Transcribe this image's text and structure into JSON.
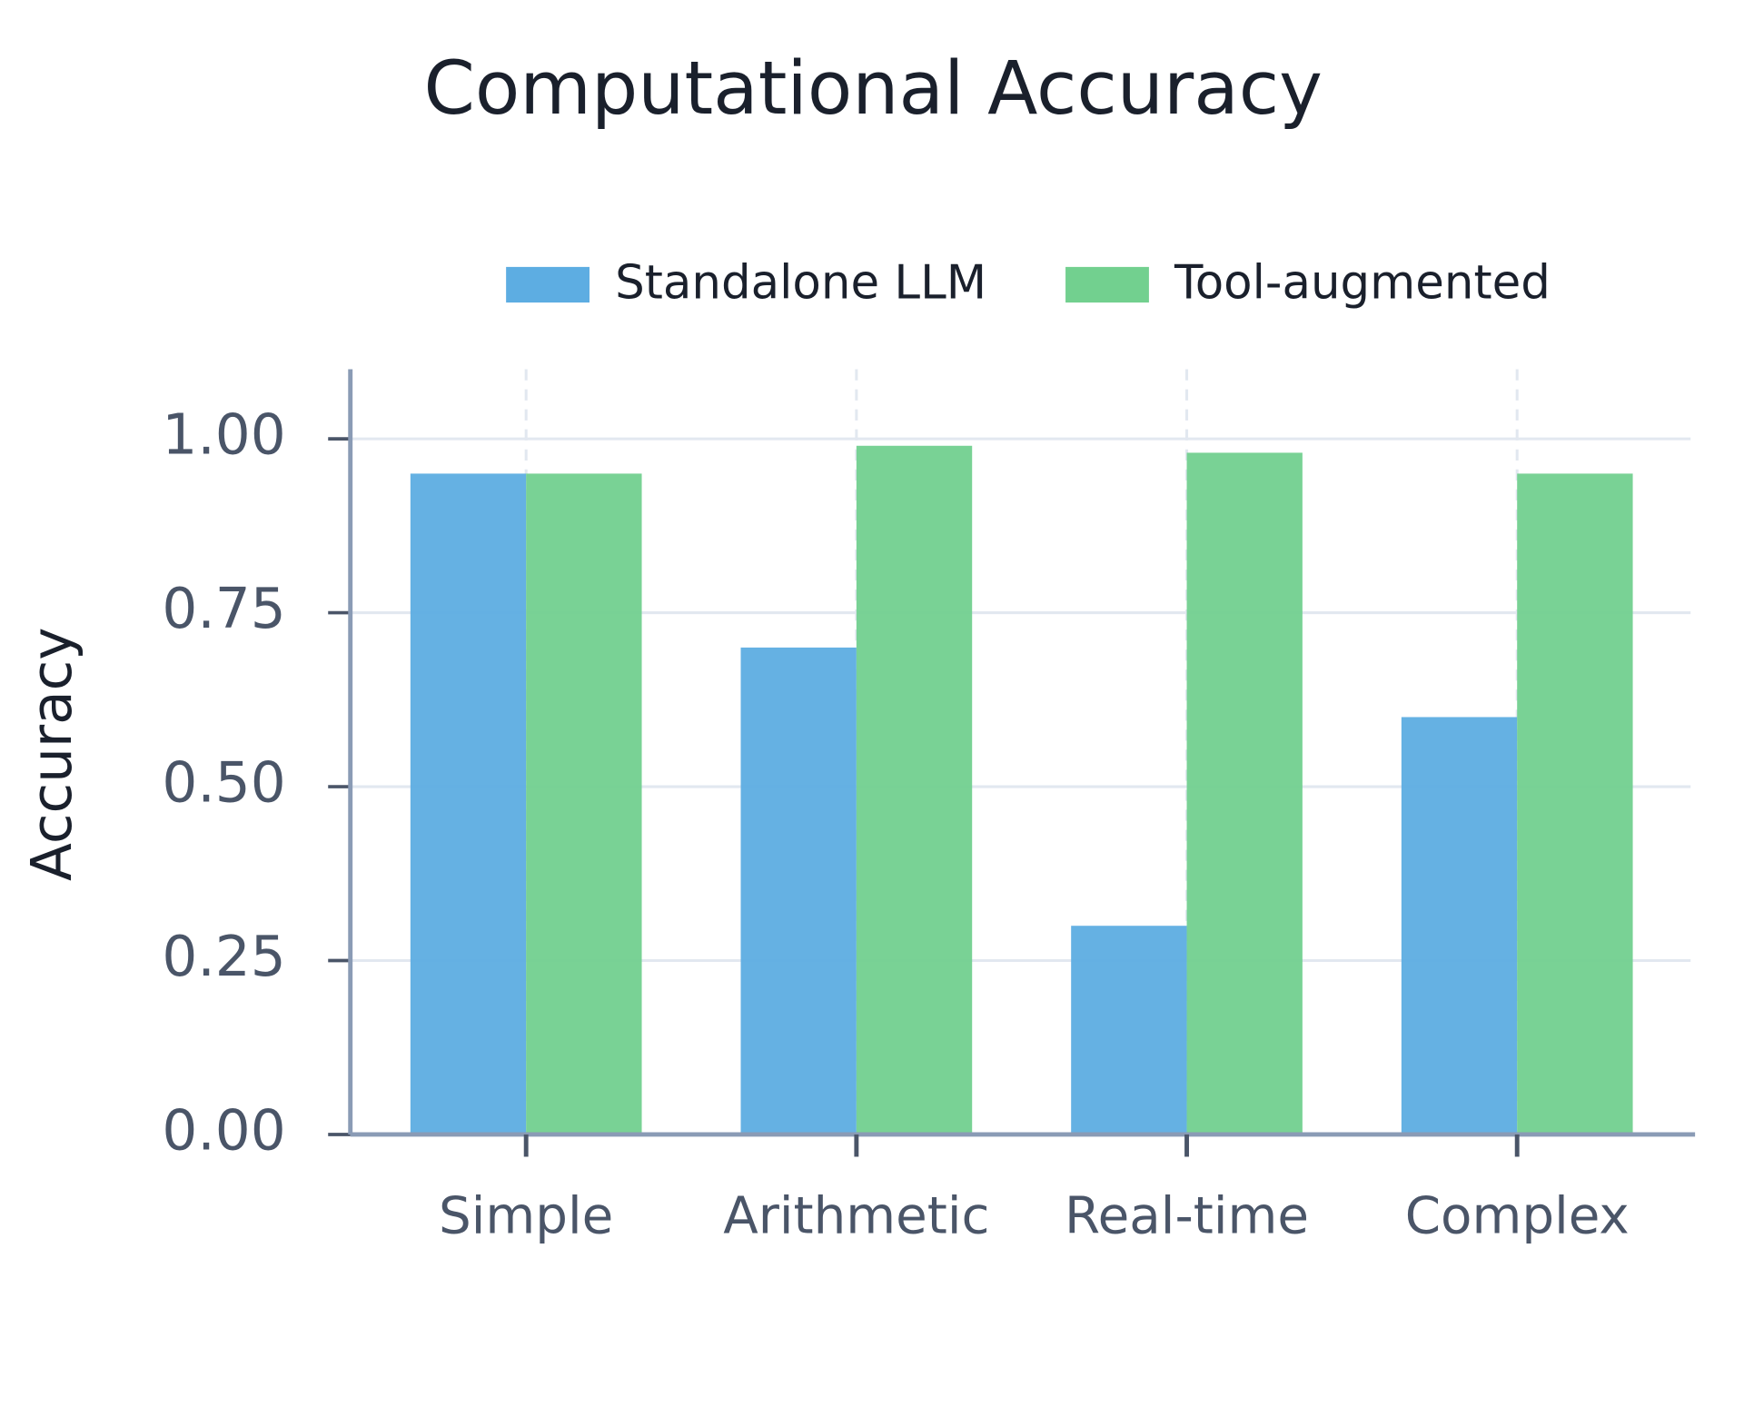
{
  "chart_data": {
    "type": "bar",
    "title": "Computational Accuracy",
    "ylabel": "Accuracy",
    "categories": [
      "Simple",
      "Arithmetic",
      "Real-time",
      "Complex"
    ],
    "series": [
      {
        "name": "Standalone LLM",
        "color": "#5dade2",
        "values": [
          0.95,
          0.7,
          0.3,
          0.6
        ]
      },
      {
        "name": "Tool-augmented",
        "color": "#72d08f",
        "values": [
          0.95,
          0.99,
          0.98,
          0.95
        ]
      }
    ],
    "ylim": [
      0,
      1.1
    ],
    "yticks": [
      {
        "value": 0,
        "label": "0.00"
      },
      {
        "value": 0.25,
        "label": "0.25"
      },
      {
        "value": 0.5,
        "label": "0.50"
      },
      {
        "value": 0.75,
        "label": "0.75"
      },
      {
        "value": 1,
        "label": "1.00"
      }
    ],
    "grid": true
  }
}
